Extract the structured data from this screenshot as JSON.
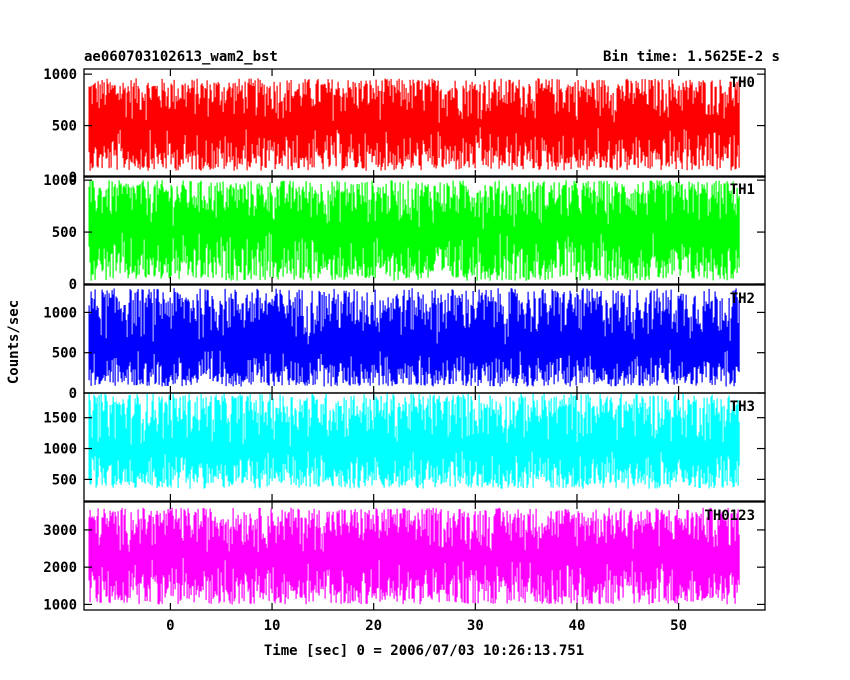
{
  "header": {
    "title_left": "ae060703102613_wam2_bst",
    "title_right": "Bin time: 1.5625E-2 s"
  },
  "chart_data": {
    "type": "line",
    "title": "ae060703102613_wam2_bst",
    "subtitle": "Bin time: 1.5625E-2 s",
    "xlabel": "Time [sec] 0 = 2006/07/03 10:26:13.751",
    "ylabel": "Counts/sec",
    "xlim": [
      -8.5,
      58.5
    ],
    "data_x_range": [
      -8,
      56
    ],
    "x_ticks": [
      0,
      10,
      20,
      30,
      40,
      50
    ],
    "grid": false,
    "panels": [
      {
        "name": "TH0",
        "color": "#ff0000",
        "ylim": [
          0,
          1050
        ],
        "y_ticks": [
          0,
          500,
          1000
        ],
        "typical_min": 60,
        "typical_max": 960,
        "mean": 500
      },
      {
        "name": "TH1",
        "color": "#00ff00",
        "ylim": [
          0,
          1040
        ],
        "y_ticks": [
          0,
          500,
          1000
        ],
        "typical_min": 30,
        "typical_max": 1000,
        "mean": 520
      },
      {
        "name": "TH2",
        "color": "#0000ff",
        "ylim": [
          0,
          1340
        ],
        "y_ticks": [
          0,
          500,
          1000
        ],
        "typical_min": 80,
        "typical_max": 1300,
        "mean": 560
      },
      {
        "name": "TH3",
        "color": "#00ffff",
        "ylim": [
          150,
          1900
        ],
        "y_ticks": [
          500,
          1000,
          1500
        ],
        "typical_min": 350,
        "typical_max": 1900,
        "mean": 1000
      },
      {
        "name": "TH0123",
        "color": "#ff00ff",
        "ylim": [
          850,
          3750
        ],
        "y_ticks": [
          1000,
          2000,
          3000
        ],
        "typical_min": 1000,
        "typical_max": 3600,
        "mean": 2300
      }
    ]
  }
}
